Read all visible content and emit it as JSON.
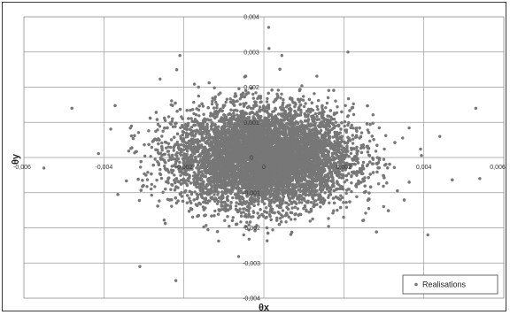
{
  "chart_data": {
    "type": "scatter",
    "title": "",
    "xlabel": "θx",
    "ylabel": "θy",
    "xlim": [
      -0.006,
      0.006
    ],
    "ylim": [
      -0.004,
      0.004
    ],
    "x_ticks": [
      "-0,006",
      "-0,004",
      "-0,002",
      "0",
      "0,002",
      "0,004",
      "0,006"
    ],
    "y_ticks": [
      "-0,004",
      "-0,003",
      "-0,002",
      "-0,001",
      "0",
      "0,001",
      "0,002",
      "0,003",
      "0,004"
    ],
    "grid": true,
    "legend": {
      "position": "bottom-right",
      "entries": [
        "Realisations"
      ]
    },
    "marker_color": "#777777",
    "series": [
      {
        "name": "Realisations",
        "distribution": {
          "mean_x": 0,
          "mean_y": 0,
          "std_x": 0.0011,
          "std_y": 0.0007,
          "count": 9000
        },
        "outliers": [
          {
            "x": 0.00012,
            "y": 0.0037
          },
          {
            "x": 0.00013,
            "y": 0.0031
          },
          {
            "x": 0.00045,
            "y": 0.0029
          },
          {
            "x": 0.0053,
            "y": 0.0014
          },
          {
            "x": 0.0054,
            "y": -0.0006
          },
          {
            "x": -0.0021,
            "y": 0.0029
          },
          {
            "x": -0.0031,
            "y": -0.0031
          },
          {
            "x": -0.0022,
            "y": -0.0035
          },
          {
            "x": -0.0055,
            "y": -0.0003
          },
          {
            "x": -0.0048,
            "y": 0.0014
          },
          {
            "x": 0.0041,
            "y": -0.0022
          },
          {
            "x": 0.0044,
            "y": 0.0006
          }
        ]
      }
    ]
  }
}
